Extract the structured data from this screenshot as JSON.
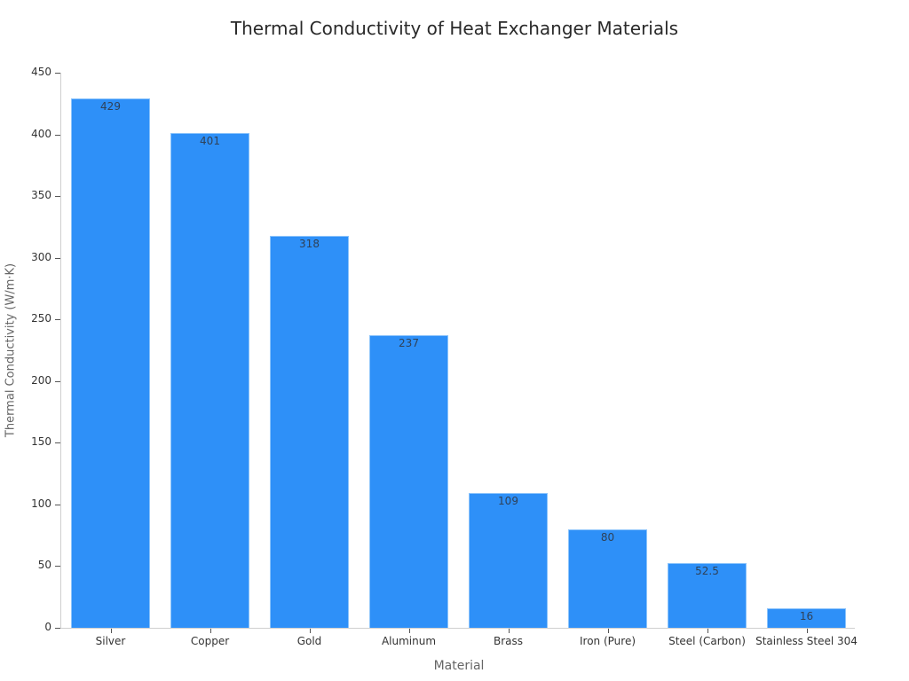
{
  "chart_data": {
    "type": "bar",
    "title": "Thermal Conductivity of Heat Exchanger Materials",
    "xlabel": "Material",
    "ylabel": "Thermal Conductivity (W/m·K)",
    "categories": [
      "Silver",
      "Copper",
      "Gold",
      "Aluminum",
      "Brass",
      "Iron (Pure)",
      "Steel (Carbon)",
      "Stainless Steel 304"
    ],
    "values": [
      429,
      401,
      318,
      237,
      109,
      80,
      52.5,
      16
    ],
    "data_labels": [
      "429",
      "401",
      "318",
      "237",
      "109",
      "80",
      "52.5",
      "16"
    ],
    "ylim": [
      0,
      450
    ],
    "yticks": [
      0,
      50,
      100,
      150,
      200,
      250,
      300,
      350,
      400,
      450
    ],
    "grid": false,
    "legend": null,
    "bar_color": "#2e90f8"
  }
}
